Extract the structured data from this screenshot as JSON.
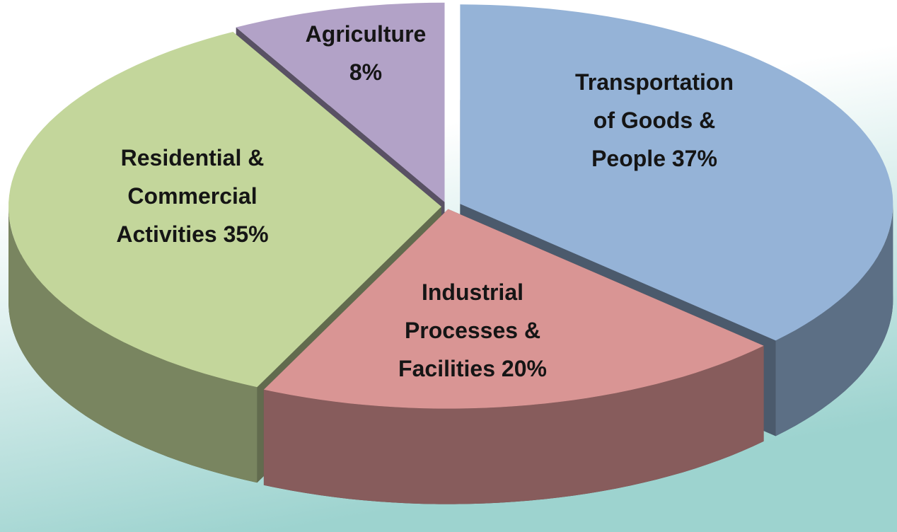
{
  "chart_data": {
    "type": "pie",
    "categories": [
      "Transportation of Goods & People",
      "Industrial Processes & Facilities",
      "Residential & Commercial Activities",
      "Agriculture"
    ],
    "values": [
      37,
      20,
      35,
      8
    ],
    "value_labels": [
      "37%",
      "20%",
      "35%",
      "8%"
    ],
    "colors": [
      "#95b3d7",
      "#d99594",
      "#c3d69b",
      "#b2a2c7"
    ]
  }
}
